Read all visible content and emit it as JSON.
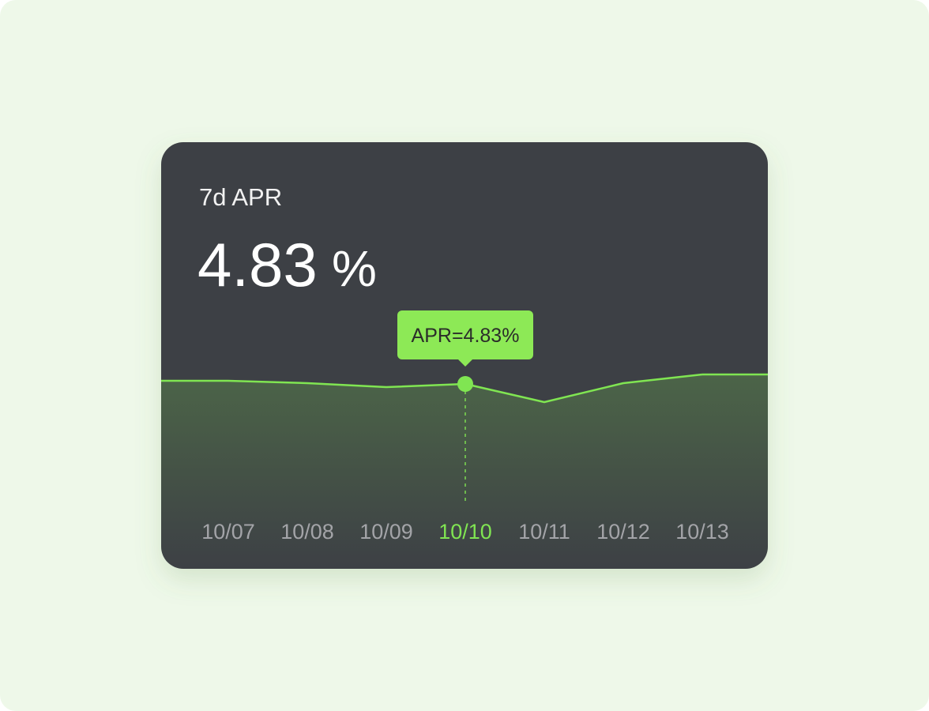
{
  "chart_data": {
    "type": "area",
    "title": "7d APR",
    "headline": {
      "value": "4.83",
      "unit": "%"
    },
    "tooltip": "APR=4.83%",
    "categories": [
      "10/07",
      "10/08",
      "10/09",
      "10/10",
      "10/11",
      "10/12",
      "10/13"
    ],
    "values": [
      4.87,
      4.84,
      4.79,
      4.83,
      4.6,
      4.84,
      4.95
    ],
    "highlight_index": 3,
    "color": "#80e552"
  }
}
